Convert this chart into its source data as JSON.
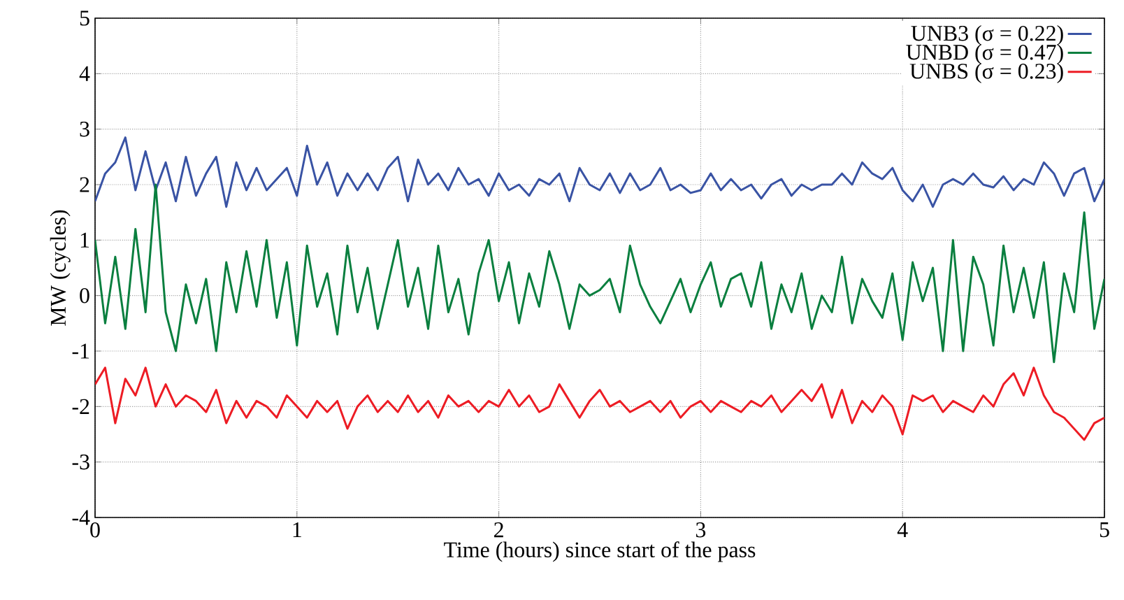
{
  "chart_data": {
    "type": "line",
    "xlabel": "Time (hours) since start of the pass",
    "ylabel": "MW (cycles)",
    "xlim": [
      0,
      5
    ],
    "ylim": [
      -4,
      5
    ],
    "xticks": [
      0,
      1,
      2,
      3,
      4,
      5
    ],
    "yticks": [
      -4,
      -3,
      -2,
      -1,
      0,
      1,
      2,
      3,
      4,
      5
    ],
    "grid": true,
    "legend": "top right",
    "x": [
      0,
      0.05,
      0.1,
      0.15,
      0.2,
      0.25,
      0.3,
      0.35,
      0.4,
      0.45,
      0.5,
      0.55,
      0.6,
      0.65,
      0.7,
      0.75,
      0.8,
      0.85,
      0.9,
      0.95,
      1,
      1.05,
      1.1,
      1.15,
      1.2,
      1.25,
      1.3,
      1.35,
      1.4,
      1.45,
      1.5,
      1.55,
      1.6,
      1.65,
      1.7,
      1.75,
      1.8,
      1.85,
      1.9,
      1.95,
      2,
      2.05,
      2.1,
      2.15,
      2.2,
      2.25,
      2.3,
      2.35,
      2.4,
      2.45,
      2.5,
      2.55,
      2.6,
      2.65,
      2.7,
      2.75,
      2.8,
      2.85,
      2.9,
      2.95,
      3,
      3.05,
      3.1,
      3.15,
      3.2,
      3.25,
      3.3,
      3.35,
      3.4,
      3.45,
      3.5,
      3.55,
      3.6,
      3.65,
      3.7,
      3.75,
      3.8,
      3.85,
      3.9,
      3.95,
      4,
      4.05,
      4.1,
      4.15,
      4.2,
      4.25,
      4.3,
      4.35,
      4.4,
      4.45,
      4.5,
      4.55,
      4.6,
      4.65,
      4.7,
      4.75,
      4.8,
      4.85,
      4.9,
      4.95,
      5
    ],
    "series": [
      {
        "name": "UNB3 (σ = 0.22)",
        "color": "#3953a4",
        "values": [
          1.7,
          2.2,
          2.4,
          2.85,
          1.9,
          2.6,
          1.9,
          2.4,
          1.7,
          2.5,
          1.8,
          2.2,
          2.5,
          1.6,
          2.4,
          1.9,
          2.3,
          1.9,
          2.1,
          2.3,
          1.8,
          2.7,
          2.0,
          2.4,
          1.8,
          2.2,
          1.9,
          2.2,
          1.9,
          2.3,
          2.5,
          1.7,
          2.45,
          2.0,
          2.2,
          1.9,
          2.3,
          2.0,
          2.1,
          1.8,
          2.2,
          1.9,
          2.0,
          1.8,
          2.1,
          2.0,
          2.2,
          1.7,
          2.3,
          2.0,
          1.9,
          2.2,
          1.85,
          2.2,
          1.9,
          2.0,
          2.3,
          1.9,
          2.0,
          1.85,
          1.9,
          2.2,
          1.9,
          2.1,
          1.9,
          2.0,
          1.75,
          2.0,
          2.1,
          1.8,
          2.0,
          1.9,
          2.0,
          2.0,
          2.2,
          2.0,
          2.4,
          2.2,
          2.1,
          2.3,
          1.9,
          1.7,
          2.0,
          1.6,
          2.0,
          2.1,
          2.0,
          2.2,
          2.0,
          1.95,
          2.15,
          1.9,
          2.1,
          2.0,
          2.4,
          2.2,
          1.8,
          2.2,
          2.3,
          1.7,
          2.1
        ]
      },
      {
        "name": "UNBD (σ = 0.47)",
        "color": "#0a7f3f",
        "values": [
          1.0,
          -0.5,
          0.7,
          -0.6,
          1.2,
          -0.3,
          2.0,
          -0.3,
          -1.0,
          0.2,
          -0.5,
          0.3,
          -1.0,
          0.6,
          -0.3,
          0.8,
          -0.2,
          1.0,
          -0.4,
          0.6,
          -0.9,
          0.9,
          -0.2,
          0.4,
          -0.7,
          0.9,
          -0.3,
          0.5,
          -0.6,
          0.2,
          1.0,
          -0.2,
          0.5,
          -0.6,
          0.9,
          -0.3,
          0.3,
          -0.7,
          0.4,
          1.0,
          -0.1,
          0.6,
          -0.5,
          0.4,
          -0.2,
          0.8,
          0.2,
          -0.6,
          0.2,
          0.0,
          0.1,
          0.3,
          -0.3,
          0.9,
          0.2,
          -0.2,
          -0.5,
          -0.1,
          0.3,
          -0.3,
          0.2,
          0.6,
          -0.2,
          0.3,
          0.4,
          -0.2,
          0.6,
          -0.6,
          0.2,
          -0.3,
          0.4,
          -0.6,
          0.0,
          -0.3,
          0.7,
          -0.5,
          0.3,
          -0.1,
          -0.4,
          0.4,
          -0.8,
          0.6,
          -0.1,
          0.5,
          -1.0,
          1.0,
          -1.0,
          0.7,
          0.2,
          -0.9,
          0.9,
          -0.3,
          0.5,
          -0.4,
          0.6,
          -1.2,
          0.4,
          -0.3,
          1.5,
          -0.6,
          0.3
        ]
      },
      {
        "name": "UNBS (σ = 0.23)",
        "color": "#ed1c24",
        "values": [
          -1.6,
          -1.3,
          -2.3,
          -1.5,
          -1.8,
          -1.3,
          -2.0,
          -1.6,
          -2.0,
          -1.8,
          -1.9,
          -2.1,
          -1.7,
          -2.3,
          -1.9,
          -2.2,
          -1.9,
          -2.0,
          -2.2,
          -1.8,
          -2.0,
          -2.2,
          -1.9,
          -2.1,
          -1.9,
          -2.4,
          -2.0,
          -1.8,
          -2.1,
          -1.9,
          -2.1,
          -1.8,
          -2.1,
          -1.9,
          -2.2,
          -1.8,
          -2.0,
          -1.9,
          -2.1,
          -1.9,
          -2.0,
          -1.7,
          -2.0,
          -1.8,
          -2.1,
          -2.0,
          -1.6,
          -1.9,
          -2.2,
          -1.9,
          -1.7,
          -2.0,
          -1.9,
          -2.1,
          -2.0,
          -1.9,
          -2.1,
          -1.9,
          -2.2,
          -2.0,
          -1.9,
          -2.1,
          -1.9,
          -2.0,
          -2.1,
          -1.9,
          -2.0,
          -1.8,
          -2.1,
          -1.9,
          -1.7,
          -1.9,
          -1.6,
          -2.2,
          -1.7,
          -2.3,
          -1.9,
          -2.1,
          -1.8,
          -2.0,
          -2.5,
          -1.8,
          -1.9,
          -1.8,
          -2.1,
          -1.9,
          -2.0,
          -2.1,
          -1.8,
          -2.0,
          -1.6,
          -1.4,
          -1.8,
          -1.3,
          -1.8,
          -2.1,
          -2.2,
          -2.4,
          -2.6,
          -2.3,
          -2.2
        ]
      }
    ]
  }
}
